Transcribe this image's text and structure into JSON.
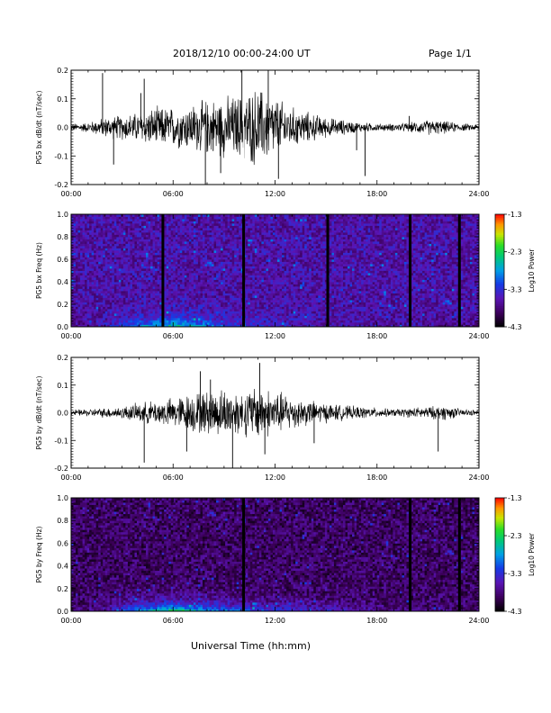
{
  "header": {
    "title": "2018/12/10   00:00-24:00 UT",
    "page": "Page 1/1"
  },
  "xlabel": "Universal Time (hh:mm)",
  "chart_data": [
    {
      "type": "line",
      "panel": "bx",
      "ylabel": "PG5 bx dB/dt (nT/sec)",
      "xlim": [
        0,
        24
      ],
      "ylim": [
        -0.2,
        0.2
      ],
      "x_tick_labels": [
        "00:00",
        "06:00",
        "12:00",
        "18:00",
        "24:00"
      ],
      "y_tick_labels": [
        "0.2",
        "0.1",
        "0.0",
        "-0.1",
        "-0.2"
      ],
      "y_ticks": [
        0.2,
        0.1,
        0.0,
        -0.1,
        -0.2
      ],
      "amplitude_envelope": {
        "x": [
          0,
          1,
          2,
          3,
          4,
          5,
          6,
          7,
          8,
          9,
          10,
          11,
          12,
          13,
          14,
          15,
          16,
          17,
          18,
          19,
          20,
          21,
          22,
          23,
          24
        ],
        "y": [
          0.015,
          0.02,
          0.04,
          0.05,
          0.06,
          0.08,
          0.08,
          0.09,
          0.11,
          0.12,
          0.13,
          0.16,
          0.12,
          0.08,
          0.06,
          0.04,
          0.03,
          0.02,
          0.015,
          0.015,
          0.02,
          0.03,
          0.025,
          0.015,
          0.012
        ]
      },
      "spikes": [
        {
          "x": 1.85,
          "y": 0.19
        },
        {
          "x": 4.3,
          "y": 0.17
        },
        {
          "x": 4.1,
          "y": 0.12
        },
        {
          "x": 2.5,
          "y": -0.13
        },
        {
          "x": 7.9,
          "y": -0.2
        },
        {
          "x": 8.8,
          "y": -0.16
        },
        {
          "x": 10.05,
          "y": 0.2
        },
        {
          "x": 11.6,
          "y": 0.2
        },
        {
          "x": 12.2,
          "y": -0.18
        },
        {
          "x": 17.3,
          "y": -0.17
        },
        {
          "x": 16.8,
          "y": -0.08
        },
        {
          "x": 19.9,
          "y": 0.04
        }
      ]
    },
    {
      "type": "heatmap",
      "panel": "bx-spectrogram",
      "ylabel": "PG5 bx Freq (Hz)",
      "xlim": [
        0,
        24
      ],
      "ylim": [
        0,
        1.0
      ],
      "x_tick_labels": [
        "00:00",
        "06:00",
        "12:00",
        "18:00",
        "24:00"
      ],
      "y_tick_labels": [
        "1.0",
        "0.8",
        "0.6",
        "0.4",
        "0.2",
        "0.0"
      ],
      "y_ticks": [
        1.0,
        0.8,
        0.6,
        0.4,
        0.2,
        0.0
      ],
      "colorbar": {
        "label": "Log10 Power",
        "min": -4.3,
        "max": -1.3,
        "tick_labels": [
          "-1.3",
          "-2.3",
          "-3.3",
          "-4.3"
        ],
        "ticks": [
          -1.3,
          -2.3,
          -3.3,
          -4.3
        ]
      },
      "data_gaps_hours": [
        5.4,
        10.15,
        15.1,
        19.95,
        22.85
      ],
      "low_freq_enhancement": {
        "x": [
          0,
          2,
          4,
          6,
          8,
          10,
          12,
          14,
          16,
          18,
          20,
          22,
          24
        ],
        "log_power": [
          -3.8,
          -3.5,
          -2.9,
          -2.4,
          -2.9,
          -3.2,
          -3.4,
          -3.5,
          -3.6,
          -3.7,
          -3.6,
          -3.7,
          -3.8
        ]
      },
      "background_log_power": -3.6
    },
    {
      "type": "line",
      "panel": "by",
      "ylabel": "PG5 by dB/dt (nT/sec)",
      "xlim": [
        0,
        24
      ],
      "ylim": [
        -0.2,
        0.2
      ],
      "x_tick_labels": [
        "00:00",
        "06:00",
        "12:00",
        "18:00",
        "24:00"
      ],
      "y_tick_labels": [
        "0.2",
        "0.1",
        "0.0",
        "-0.1",
        "-0.2"
      ],
      "y_ticks": [
        0.2,
        0.1,
        0.0,
        -0.1,
        -0.2
      ],
      "amplitude_envelope": {
        "x": [
          0,
          1,
          2,
          3,
          4,
          5,
          6,
          7,
          8,
          9,
          10,
          11,
          12,
          13,
          14,
          15,
          16,
          17,
          18,
          19,
          20,
          21,
          22,
          23,
          24
        ],
        "y": [
          0.012,
          0.015,
          0.02,
          0.025,
          0.04,
          0.05,
          0.06,
          0.08,
          0.09,
          0.1,
          0.09,
          0.11,
          0.09,
          0.07,
          0.05,
          0.04,
          0.03,
          0.025,
          0.02,
          0.015,
          0.02,
          0.025,
          0.03,
          0.015,
          0.01
        ]
      },
      "spikes": [
        {
          "x": 4.3,
          "y": -0.18
        },
        {
          "x": 6.8,
          "y": -0.14
        },
        {
          "x": 7.6,
          "y": 0.15
        },
        {
          "x": 8.2,
          "y": 0.12
        },
        {
          "x": 9.5,
          "y": -0.2
        },
        {
          "x": 11.1,
          "y": 0.18
        },
        {
          "x": 11.4,
          "y": -0.15
        },
        {
          "x": 14.3,
          "y": -0.11
        },
        {
          "x": 21.6,
          "y": -0.14
        }
      ]
    },
    {
      "type": "heatmap",
      "panel": "by-spectrogram",
      "ylabel": "PG5 by Freq (Hz)",
      "xlim": [
        0,
        24
      ],
      "ylim": [
        0,
        1.0
      ],
      "x_tick_labels": [
        "00:00",
        "06:00",
        "12:00",
        "18:00",
        "24:00"
      ],
      "y_tick_labels": [
        "1.0",
        "0.8",
        "0.6",
        "0.4",
        "0.2",
        "0.0"
      ],
      "y_ticks": [
        1.0,
        0.8,
        0.6,
        0.4,
        0.2,
        0.0
      ],
      "colorbar": {
        "label": "Log10 Power",
        "min": -4.3,
        "max": -1.3,
        "tick_labels": [
          "-1.3",
          "-2.3",
          "-3.3",
          "-4.3"
        ],
        "ticks": [
          -1.3,
          -2.3,
          -3.3,
          -4.3
        ]
      },
      "data_gaps_hours": [
        10.15,
        19.95,
        22.85
      ],
      "low_freq_enhancement": {
        "x": [
          0,
          2,
          4,
          6,
          8,
          10,
          12,
          14,
          16,
          18,
          20,
          22,
          24
        ],
        "log_power": [
          -3.9,
          -3.6,
          -2.7,
          -2.3,
          -2.7,
          -3.0,
          -3.2,
          -3.4,
          -3.5,
          -3.7,
          -3.8,
          -3.8,
          -3.9
        ]
      },
      "background_log_power": -3.9
    }
  ]
}
